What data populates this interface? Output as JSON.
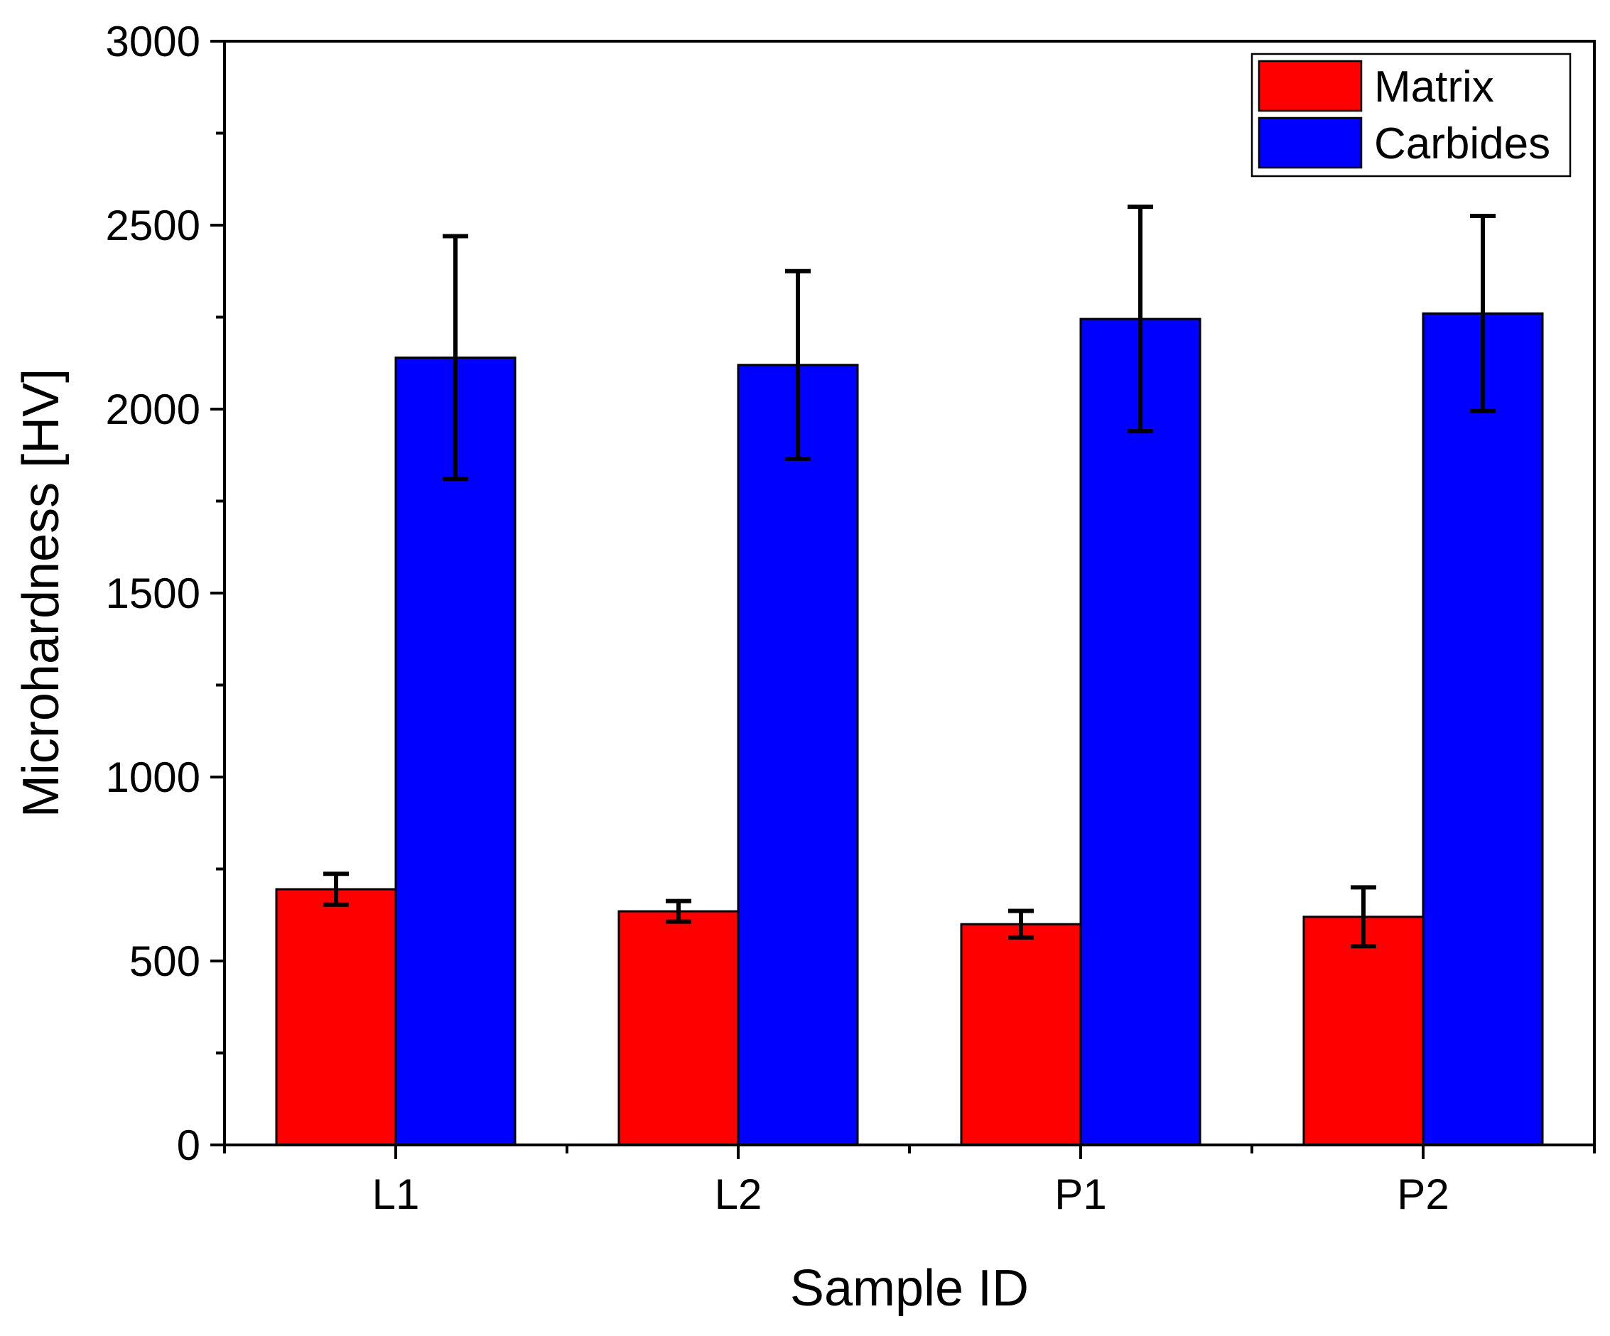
{
  "chart_data": {
    "type": "bar",
    "title": "",
    "xlabel": "Sample ID",
    "ylabel": "Microhardness [HV]",
    "categories": [
      "L1",
      "L2",
      "P1",
      "P2"
    ],
    "ylim": [
      0,
      3000
    ],
    "yticks": [
      0,
      500,
      1000,
      1500,
      2000,
      2500,
      3000
    ],
    "grid": false,
    "legend_position": "top-right",
    "series": [
      {
        "name": "Matrix",
        "color": "#ff0000",
        "values": [
          695,
          635,
          600,
          620
        ],
        "errors": [
          42,
          28,
          36,
          80
        ]
      },
      {
        "name": "Carbides",
        "color": "#0000ff",
        "values": [
          2140,
          2120,
          2245,
          2260
        ],
        "errors": [
          330,
          255,
          305,
          265
        ]
      }
    ]
  }
}
